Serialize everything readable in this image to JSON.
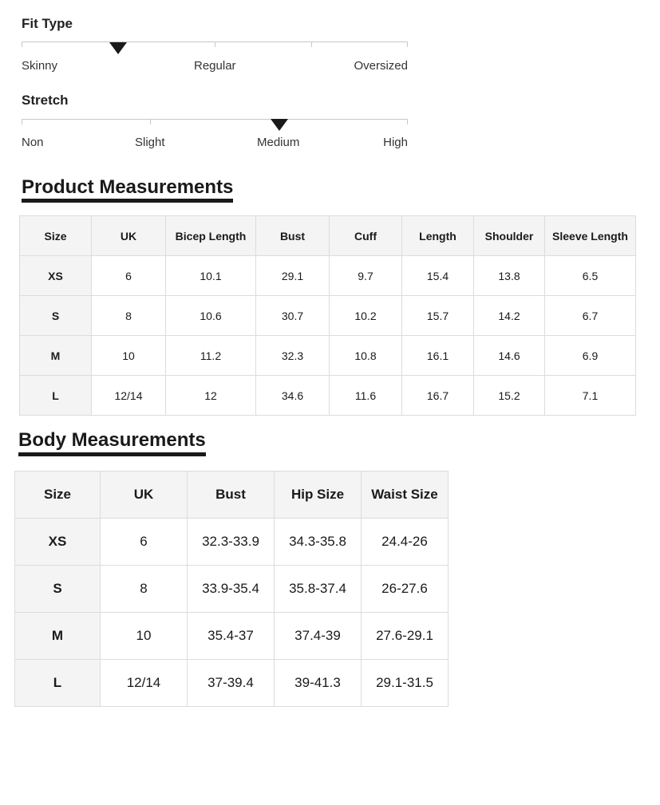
{
  "fit_type": {
    "title": "Fit Type",
    "labels": [
      "Skinny",
      "Regular",
      "Oversized"
    ],
    "selected_position": 0.25
  },
  "stretch": {
    "title": "Stretch",
    "labels": [
      "Non",
      "Slight",
      "Medium",
      "High"
    ],
    "selected_position": 0.667
  },
  "product_measurements": {
    "title": "Product Measurements",
    "headers": [
      "Size",
      "UK",
      "Bicep Length",
      "Bust",
      "Cuff",
      "Length",
      "Shoulder",
      "Sleeve Length"
    ],
    "rows": [
      [
        "XS",
        "6",
        "10.1",
        "29.1",
        "9.7",
        "15.4",
        "13.8",
        "6.5"
      ],
      [
        "S",
        "8",
        "10.6",
        "30.7",
        "10.2",
        "15.7",
        "14.2",
        "6.7"
      ],
      [
        "M",
        "10",
        "11.2",
        "32.3",
        "10.8",
        "16.1",
        "14.6",
        "6.9"
      ],
      [
        "L",
        "12/14",
        "12",
        "34.6",
        "11.6",
        "16.7",
        "15.2",
        "7.1"
      ]
    ]
  },
  "body_measurements": {
    "title": "Body Measurements",
    "headers": [
      "Size",
      "UK",
      "Bust",
      "Hip Size",
      "Waist Size"
    ],
    "rows": [
      [
        "XS",
        "6",
        "32.3-33.9",
        "34.3-35.8",
        "24.4-26"
      ],
      [
        "S",
        "8",
        "33.9-35.4",
        "35.8-37.4",
        "26-27.6"
      ],
      [
        "M",
        "10",
        "35.4-37",
        "37.4-39",
        "27.6-29.1"
      ],
      [
        "L",
        "12/14",
        "37-39.4",
        "39-41.3",
        "29.1-31.5"
      ]
    ]
  }
}
